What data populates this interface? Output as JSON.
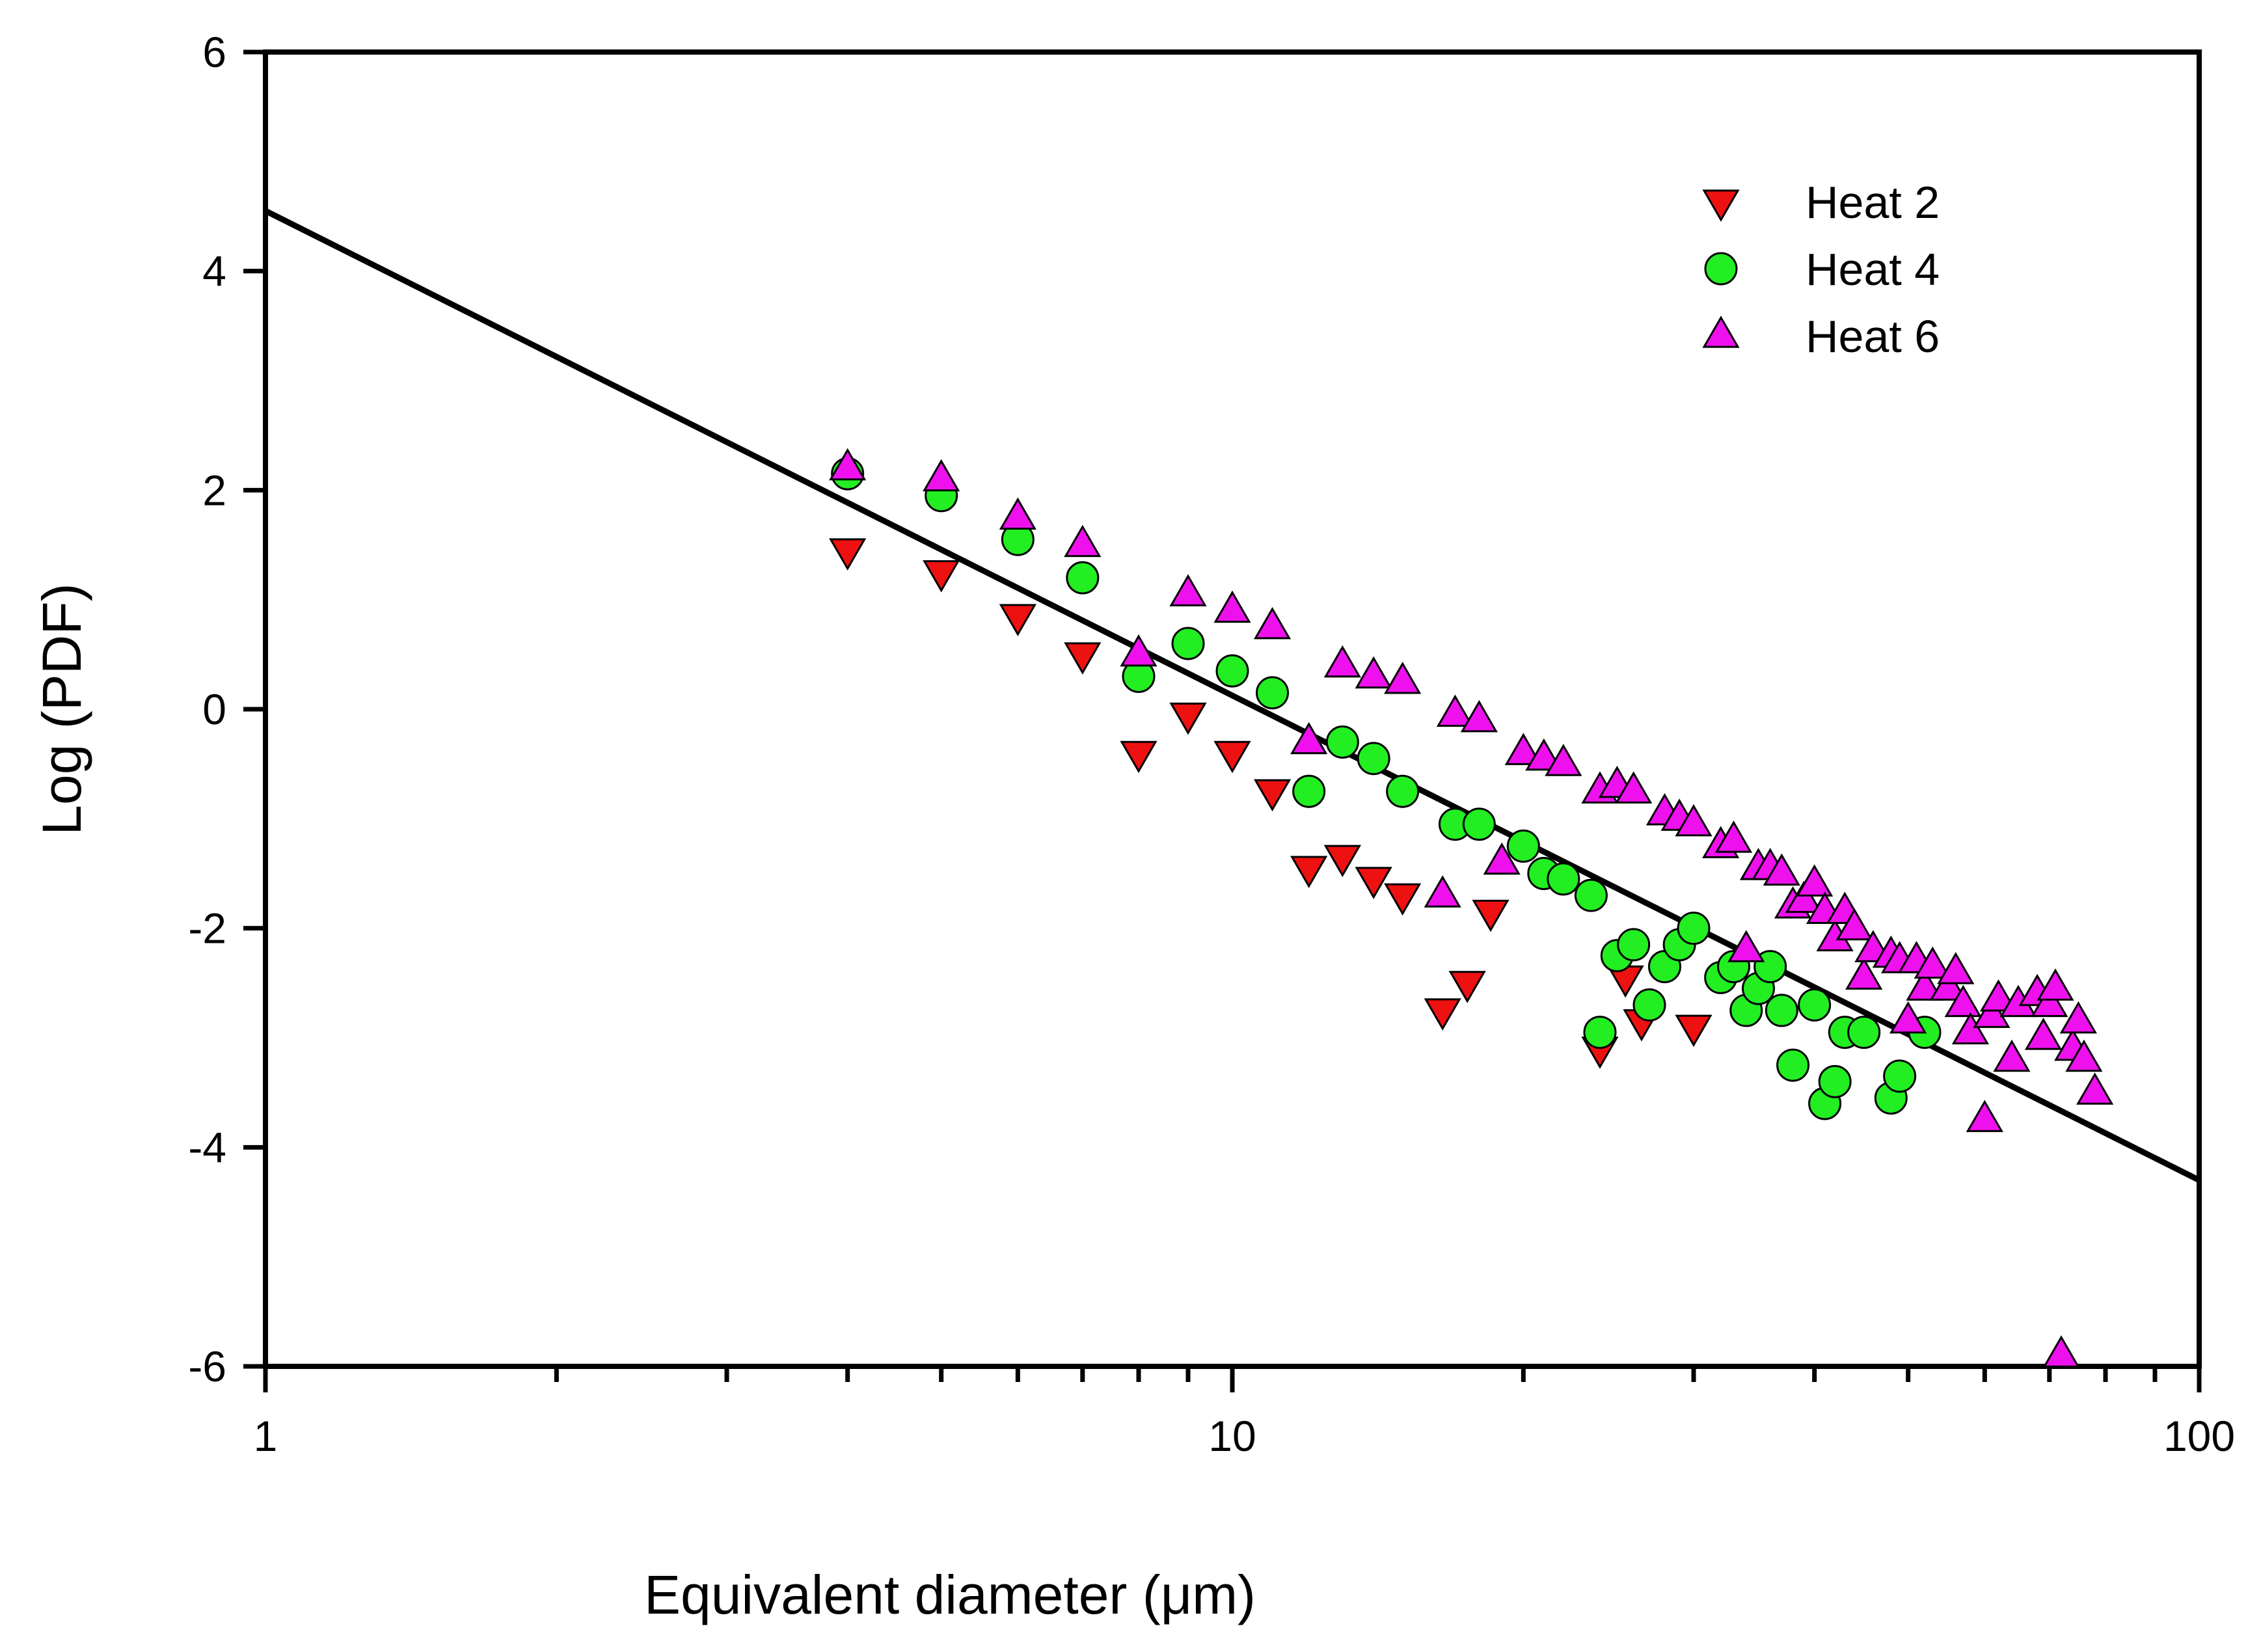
{
  "chart_data": {
    "type": "scatter",
    "title": "",
    "xlabel": "Equivalent diameter (μm)",
    "ylabel": "Log (PDF)",
    "xscale": "log",
    "xlim": [
      1,
      100
    ],
    "ylim": [
      -6,
      6
    ],
    "x_tick_labels": [
      "1",
      "10",
      "100"
    ],
    "x_tick_values": [
      1,
      10,
      100
    ],
    "y_tick_labels": [
      "6",
      "4",
      "2",
      "0",
      "-2",
      "-4",
      "-6"
    ],
    "y_tick_values": [
      6,
      4,
      2,
      0,
      -2,
      -4,
      -6
    ],
    "legend_position": "top-right",
    "fit_line": {
      "x": [
        1,
        100
      ],
      "y": [
        4.55,
        -4.3
      ]
    },
    "series": [
      {
        "name": "Heat 2",
        "marker": "triangle-down",
        "color": "#ee1111",
        "x": [
          4,
          5,
          6,
          7,
          8,
          9,
          10,
          11,
          12,
          13,
          14,
          15,
          16.5,
          17.5,
          18.5,
          24,
          25.5,
          26.5,
          30
        ],
        "y": [
          1.45,
          1.25,
          0.85,
          0.5,
          -0.4,
          -0.05,
          -0.4,
          -0.75,
          -1.45,
          -1.35,
          -1.55,
          -1.7,
          -2.75,
          -2.5,
          -1.85,
          -3.1,
          -2.45,
          -2.85,
          -2.9
        ]
      },
      {
        "name": "Heat 4",
        "marker": "circle",
        "color": "#22ee22",
        "x": [
          4,
          5,
          6,
          7,
          8,
          9,
          10,
          11,
          12,
          13,
          14,
          15,
          17,
          18,
          20,
          21,
          22,
          23.5,
          24,
          25,
          26,
          27,
          28,
          29,
          30,
          32,
          33,
          34,
          35,
          36,
          37,
          38,
          40,
          41,
          42,
          43,
          45,
          48,
          49,
          52
        ],
        "y": [
          2.15,
          1.95,
          1.55,
          1.2,
          0.3,
          0.6,
          0.35,
          0.15,
          -0.75,
          -0.3,
          -0.45,
          -0.75,
          -1.05,
          -1.05,
          -1.25,
          -1.5,
          -1.55,
          -1.7,
          -2.95,
          -2.25,
          -2.15,
          -2.7,
          -2.35,
          -2.15,
          -2.0,
          -2.45,
          -2.35,
          -2.75,
          -2.55,
          -2.35,
          -2.75,
          -3.25,
          -2.7,
          -3.6,
          -3.4,
          -2.95,
          -2.95,
          -3.55,
          -3.35,
          -2.95
        ]
      },
      {
        "name": "Heat 6",
        "marker": "triangle-up",
        "color": "#ee11ee",
        "x": [
          4,
          5,
          6,
          7,
          8,
          9,
          10,
          11,
          12,
          13,
          14,
          15,
          16.5,
          17,
          18,
          19,
          20,
          21,
          22,
          24,
          25,
          26,
          28,
          29,
          30,
          32,
          33,
          34,
          35,
          36,
          37,
          38,
          39,
          40,
          41,
          42,
          43,
          44,
          45,
          46,
          48,
          49,
          50,
          51,
          52,
          53,
          55,
          56,
          57,
          58,
          60,
          61,
          62,
          64,
          65,
          68,
          69,
          70,
          71,
          72,
          74,
          75,
          76,
          78
        ],
        "y": [
          2.2,
          2.1,
          1.75,
          1.5,
          0.5,
          1.05,
          0.9,
          0.75,
          -0.3,
          0.4,
          0.3,
          0.25,
          -1.7,
          -0.05,
          -0.1,
          -1.4,
          -0.4,
          -0.45,
          -0.5,
          -0.75,
          -0.7,
          -0.75,
          -0.95,
          -1.0,
          -1.05,
          -1.25,
          -1.2,
          -2.2,
          -1.45,
          -1.45,
          -1.5,
          -1.8,
          -1.75,
          -1.6,
          -1.85,
          -2.1,
          -1.85,
          -2.0,
          -2.45,
          -2.2,
          -2.25,
          -2.3,
          -2.85,
          -2.3,
          -2.55,
          -2.35,
          -2.55,
          -2.4,
          -2.7,
          -2.95,
          -3.75,
          -2.8,
          -2.65,
          -3.2,
          -2.7,
          -2.6,
          -3.0,
          -2.7,
          -2.55,
          -5.9,
          -3.1,
          -2.85,
          -3.2,
          -3.5
        ]
      }
    ]
  }
}
